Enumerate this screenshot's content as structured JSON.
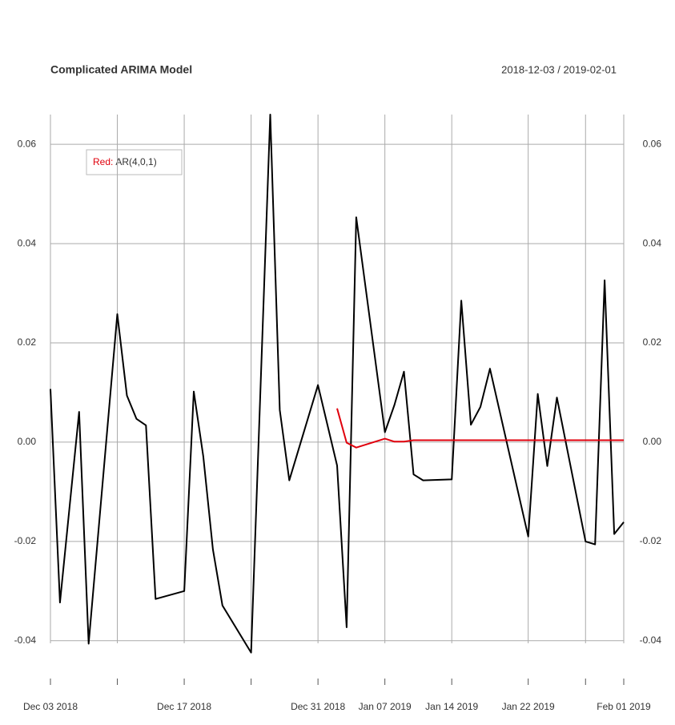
{
  "chart_data": {
    "type": "line",
    "title": "Complicated ARIMA Model",
    "subtitle": "2018-12-03 / 2019-02-01",
    "legend_key": "Red:",
    "x": [
      "2018-12-03",
      "2018-12-04",
      "2018-12-06",
      "2018-12-07",
      "2018-12-10",
      "2018-12-11",
      "2018-12-12",
      "2018-12-13",
      "2018-12-14",
      "2018-12-17",
      "2018-12-18",
      "2018-12-19",
      "2018-12-20",
      "2018-12-21",
      "2018-12-24",
      "2018-12-26",
      "2018-12-27",
      "2018-12-28",
      "2018-12-31",
      "2019-01-02",
      "2019-01-03",
      "2019-01-04",
      "2019-01-07",
      "2019-01-08",
      "2019-01-09",
      "2019-01-10",
      "2019-01-11",
      "2019-01-14",
      "2019-01-15",
      "2019-01-16",
      "2019-01-17",
      "2019-01-18",
      "2019-01-22",
      "2019-01-23",
      "2019-01-24",
      "2019-01-25",
      "2019-01-28",
      "2019-01-29",
      "2019-01-30",
      "2019-01-31",
      "2019-02-01"
    ],
    "series": [
      {
        "color": "#000000",
        "values": [
          0.0107,
          -0.0323,
          0.0061,
          -0.0406,
          0.0258,
          0.0094,
          0.0047,
          0.0034,
          -0.0316,
          -0.03,
          0.0102,
          -0.0029,
          -0.0216,
          -0.0329,
          -0.0424,
          0.066,
          0.0065,
          -0.0077,
          0.0115,
          -0.0047,
          -0.0373,
          0.0453,
          0.002,
          0.0075,
          0.0142,
          -0.0065,
          -0.0077,
          -0.0075,
          0.0285,
          0.0035,
          0.0071,
          0.0148,
          -0.019,
          0.0097,
          -0.0048,
          0.009,
          -0.02,
          -0.0206,
          0.0326,
          -0.0185,
          -0.0161
        ]
      },
      {
        "name": "AR(4,0,1)",
        "color": "#e0000c",
        "values": [
          null,
          null,
          null,
          null,
          null,
          null,
          null,
          null,
          null,
          null,
          null,
          null,
          null,
          null,
          null,
          null,
          null,
          null,
          null,
          0.0068,
          -0.0001,
          -0.0011,
          0.0007,
          0.0001,
          0.0001,
          0.0004,
          0.0004,
          0.0004,
          0.0004,
          0.0004,
          0.0004,
          0.0004,
          0.0004,
          0.0004,
          0.0004,
          0.0004,
          0.0004,
          0.0004,
          0.0004,
          0.0004,
          0.0004
        ]
      }
    ],
    "xlim": [
      "2018-12-03",
      "2019-02-01"
    ],
    "xticks": [
      {
        "value": "2018-12-03",
        "label": "Dec 03 2018"
      },
      {
        "value": "2018-12-10",
        "label": null
      },
      {
        "value": "2018-12-17",
        "label": "Dec 17 2018"
      },
      {
        "value": "2018-12-24",
        "label": null
      },
      {
        "value": "2018-12-31",
        "label": "Dec 31 2018"
      },
      {
        "value": "2019-01-07",
        "label": "Jan 07 2019"
      },
      {
        "value": "2019-01-14",
        "label": "Jan 14 2019"
      },
      {
        "value": "2019-01-22",
        "label": "Jan 22 2019"
      },
      {
        "value": "2019-01-28",
        "label": null
      },
      {
        "value": "2019-02-01",
        "label": "Feb 01 2019"
      }
    ],
    "ylim": [
      -0.0473,
      0.066
    ],
    "yticks": [
      0.06,
      0.04,
      0.02,
      {
        "value": 0,
        "label": "0.00"
      },
      -0.02,
      -0.04
    ],
    "grid": true
  }
}
